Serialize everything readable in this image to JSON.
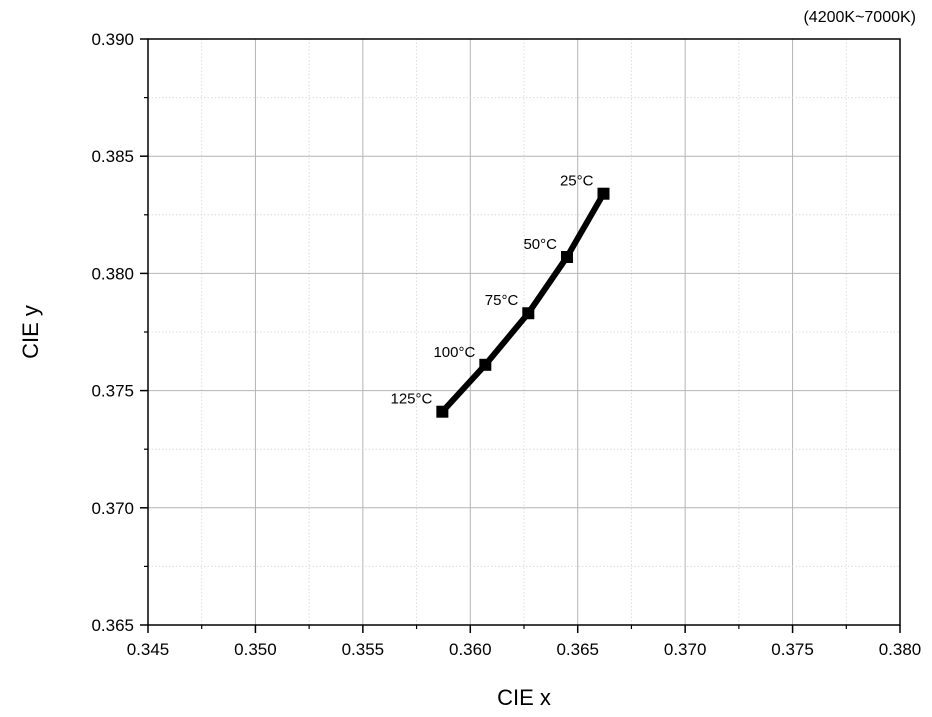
{
  "chart_data": {
    "type": "line",
    "title": "",
    "note": "(4200K~7000K)",
    "xlabel": "CIE x",
    "ylabel": "CIE y",
    "xlim": [
      0.345,
      0.38
    ],
    "ylim": [
      0.365,
      0.39
    ],
    "xticks": [
      "0.345",
      "0.350",
      "0.355",
      "0.360",
      "0.365",
      "0.370",
      "0.375",
      "0.380"
    ],
    "yticks": [
      "0.365",
      "0.370",
      "0.375",
      "0.380",
      "0.385",
      "0.390"
    ],
    "grid": true,
    "marker": "square",
    "line_color": "#000000",
    "series": [
      {
        "x": [
          0.3587,
          0.3607,
          0.3627,
          0.3645,
          0.3662
        ],
        "y": [
          0.3741,
          0.3761,
          0.3783,
          0.3807,
          0.3834
        ],
        "labels": [
          "125°C",
          "100°C",
          "75°C",
          "50°C",
          "25°C"
        ]
      }
    ]
  }
}
